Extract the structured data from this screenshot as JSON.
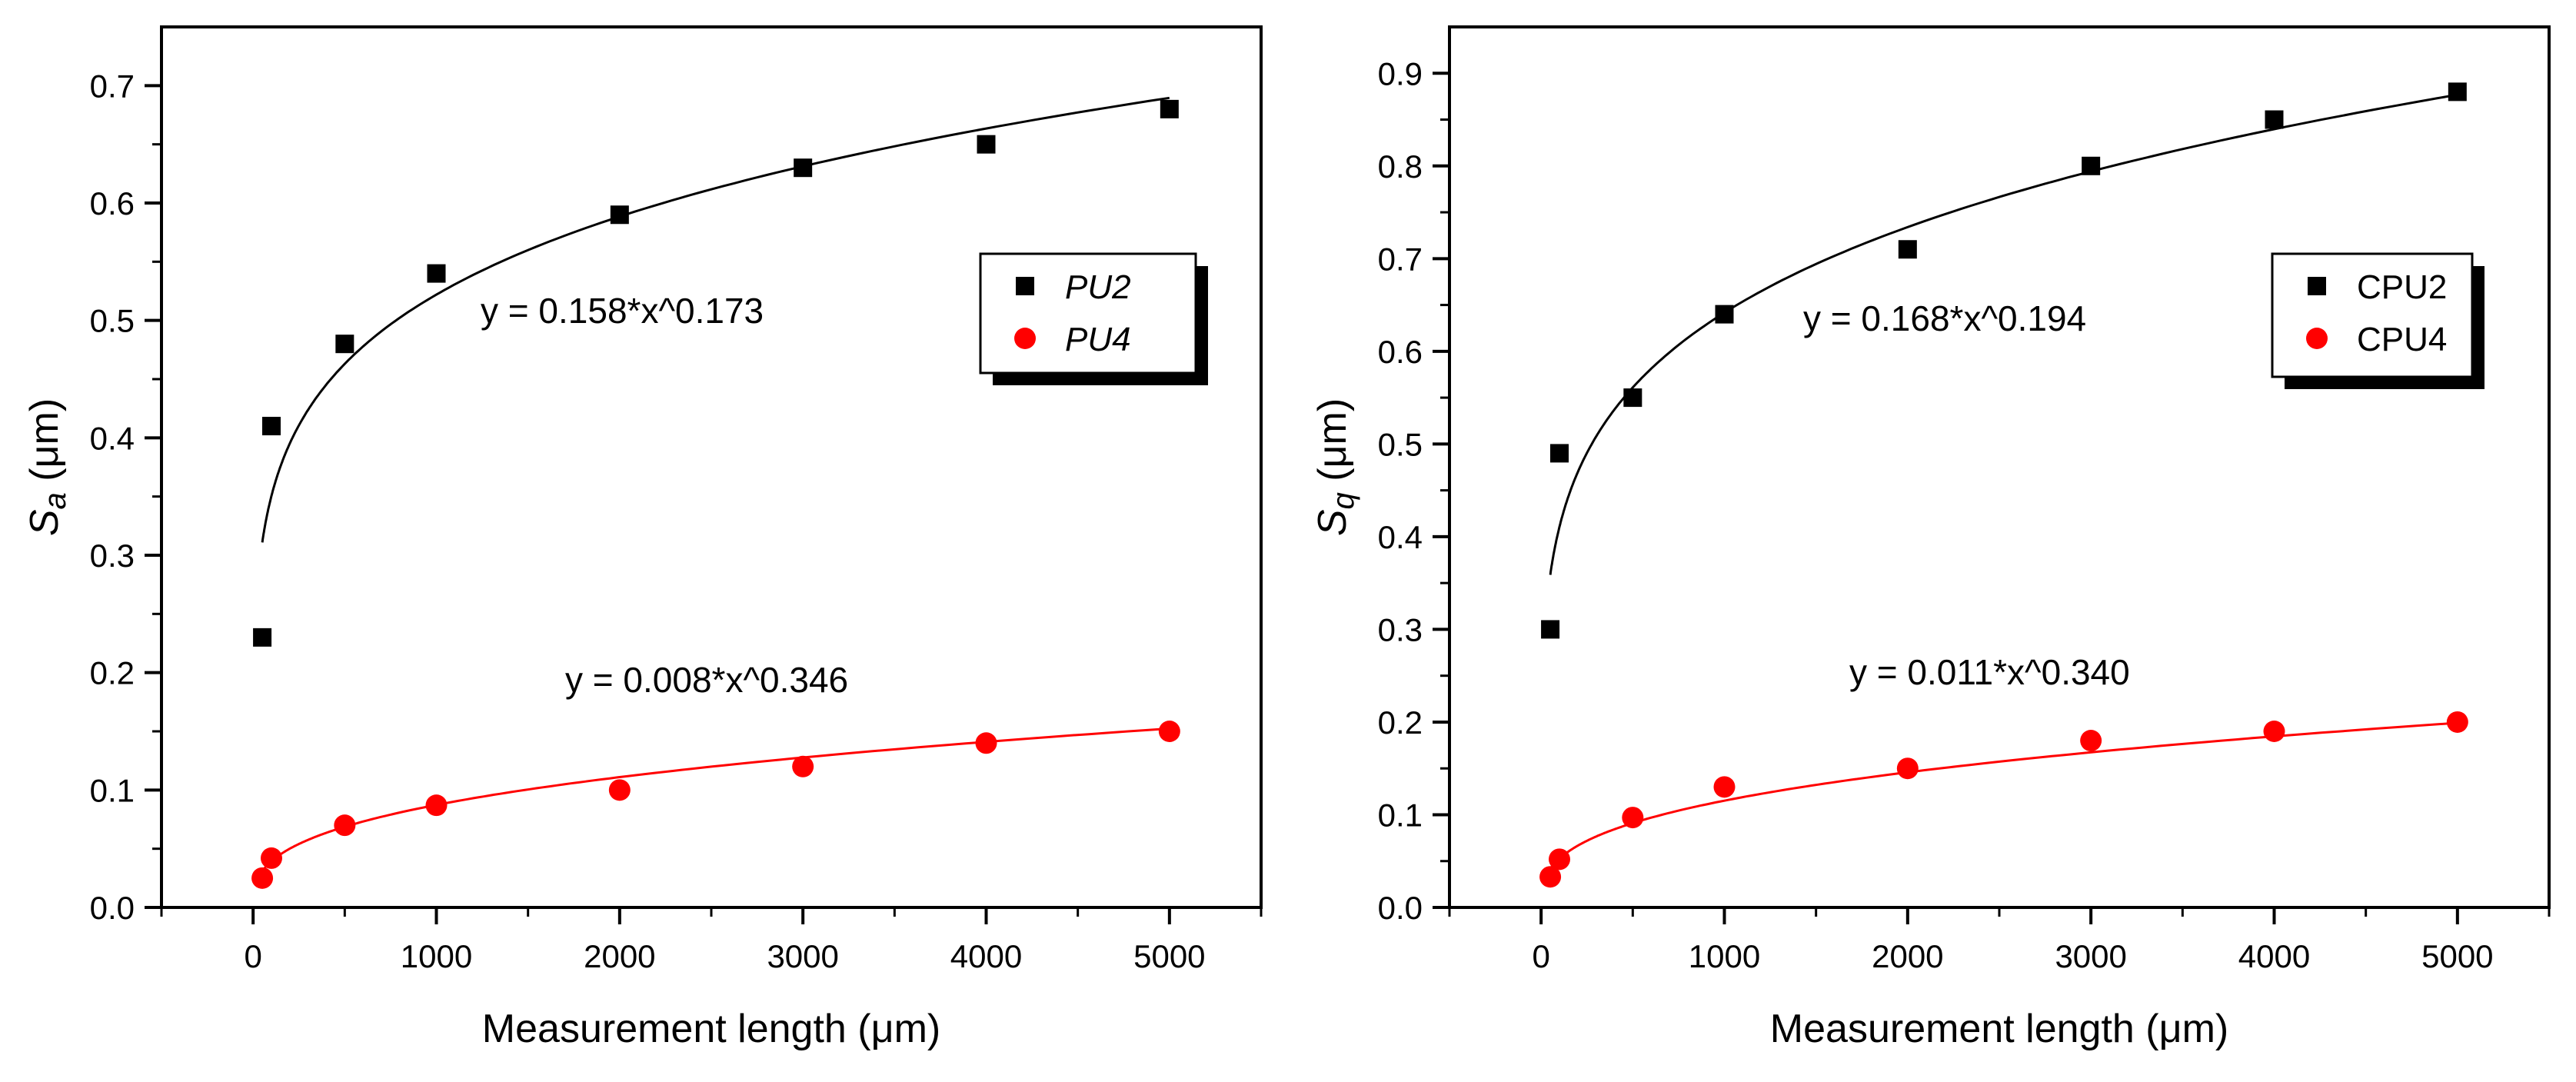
{
  "chart_data": [
    {
      "type": "scatter",
      "xlabel": "Measurement length (μm)",
      "ylabel_main": "S",
      "ylabel_sub": "a",
      "ylabel_unit": " (μm)",
      "xlim": [
        -500,
        5500
      ],
      "ylim": [
        0,
        0.75
      ],
      "xticks": [
        0,
        1000,
        2000,
        3000,
        4000,
        5000
      ],
      "yticks": [
        0.0,
        0.1,
        0.2,
        0.3,
        0.4,
        0.5,
        0.6,
        0.7
      ],
      "ytick_labels": [
        "0.0",
        "0.1",
        "0.2",
        "0.3",
        "0.4",
        "0.5",
        "0.6",
        "0.7"
      ],
      "legend_italic": true,
      "series": [
        {
          "name": "PU2",
          "marker": "square",
          "color": "#000000",
          "x": [
            50,
            100,
            500,
            1000,
            2000,
            3000,
            4000,
            5000
          ],
          "y": [
            0.23,
            0.41,
            0.48,
            0.54,
            0.59,
            0.63,
            0.65,
            0.68
          ],
          "fit": {
            "a": 0.158,
            "b": 0.173,
            "label": "y = 0.158*x^0.173"
          }
        },
        {
          "name": "PU4",
          "marker": "circle",
          "color": "#ff0000",
          "x": [
            50,
            100,
            500,
            1000,
            2000,
            3000,
            4000,
            5000
          ],
          "y": [
            0.025,
            0.042,
            0.07,
            0.087,
            0.1,
            0.12,
            0.14,
            0.15
          ],
          "fit": {
            "a": 0.008,
            "b": 0.346,
            "label": "y = 0.008*x^0.346"
          }
        }
      ]
    },
    {
      "type": "scatter",
      "xlabel": "Measurement length (μm)",
      "ylabel_main": "S",
      "ylabel_sub": "q",
      "ylabel_unit": " (μm)",
      "xlim": [
        -500,
        5500
      ],
      "ylim": [
        0,
        0.95
      ],
      "xticks": [
        0,
        1000,
        2000,
        3000,
        4000,
        5000
      ],
      "yticks": [
        0.0,
        0.1,
        0.2,
        0.3,
        0.4,
        0.5,
        0.6,
        0.7,
        0.8,
        0.9
      ],
      "ytick_labels": [
        "0.0",
        "0.1",
        "0.2",
        "0.3",
        "0.4",
        "0.5",
        "0.6",
        "0.7",
        "0.8",
        "0.9"
      ],
      "legend_italic": false,
      "series": [
        {
          "name": "CPU2",
          "marker": "square",
          "color": "#000000",
          "x": [
            50,
            100,
            500,
            1000,
            2000,
            3000,
            4000,
            5000
          ],
          "y": [
            0.3,
            0.49,
            0.55,
            0.64,
            0.71,
            0.8,
            0.85,
            0.88
          ],
          "fit": {
            "a": 0.168,
            "b": 0.194,
            "label": "y = 0.168*x^0.194"
          }
        },
        {
          "name": "CPU4",
          "marker": "circle",
          "color": "#ff0000",
          "x": [
            50,
            100,
            500,
            1000,
            2000,
            3000,
            4000,
            5000
          ],
          "y": [
            0.033,
            0.052,
            0.097,
            0.13,
            0.15,
            0.18,
            0.19,
            0.2
          ],
          "fit": {
            "a": 0.011,
            "b": 0.34,
            "label": "y = 0.011*x^0.340"
          }
        }
      ]
    }
  ]
}
